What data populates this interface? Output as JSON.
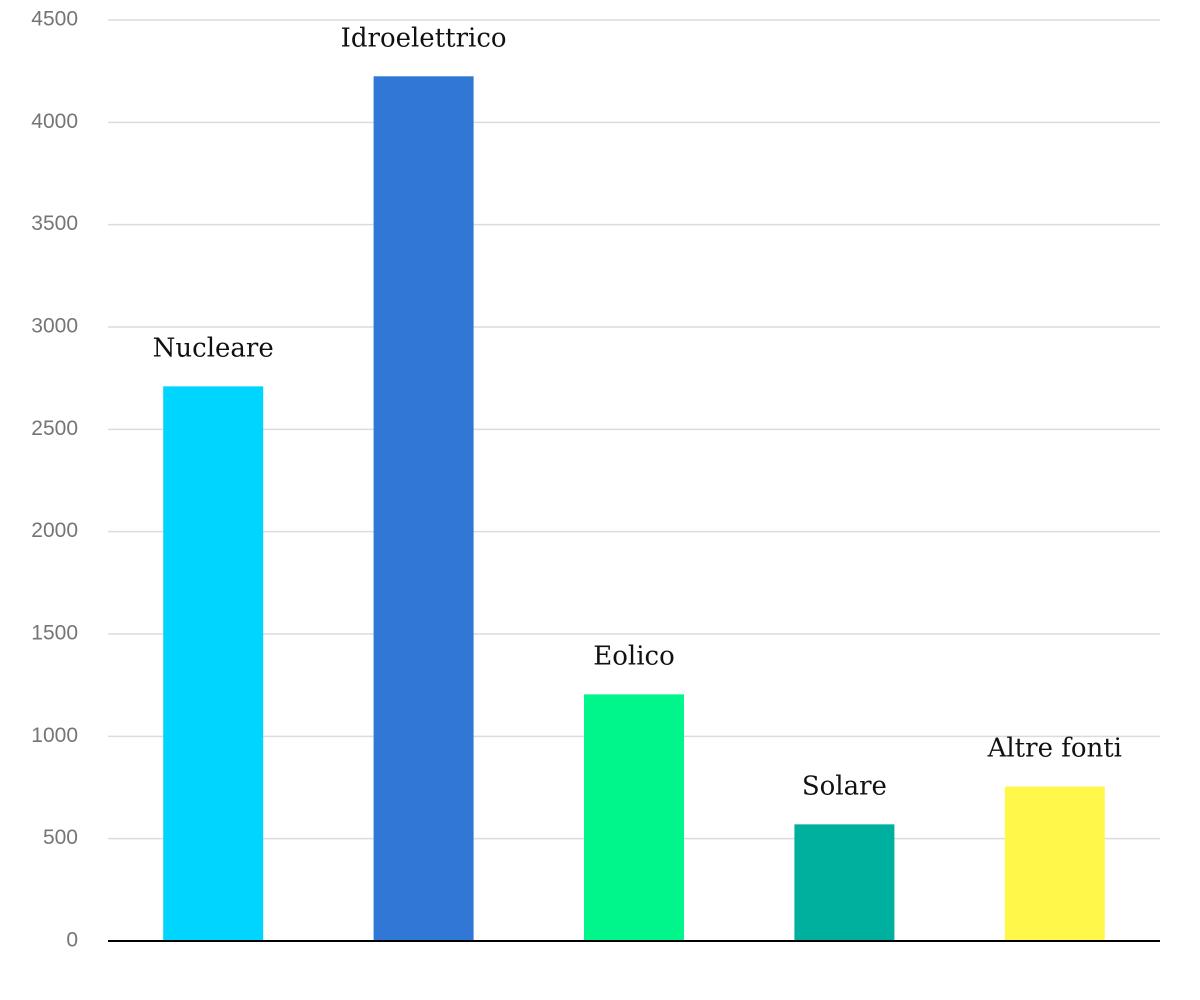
{
  "chart_data": {
    "type": "bar",
    "categories": [
      "Nucleare",
      "Idroelettrico",
      "Eolico",
      "Solare",
      "Altre fonti"
    ],
    "values": [
      2710,
      4225,
      1205,
      570,
      755
    ],
    "colors": [
      "#00d5ff",
      "#3077d6",
      "#00f58b",
      "#00b09f",
      "#fff84a"
    ],
    "ylim": [
      0,
      4500
    ],
    "yticks": [
      0,
      500,
      1000,
      1500,
      2000,
      2500,
      3000,
      3500,
      4000,
      4500
    ],
    "grid": true
  }
}
